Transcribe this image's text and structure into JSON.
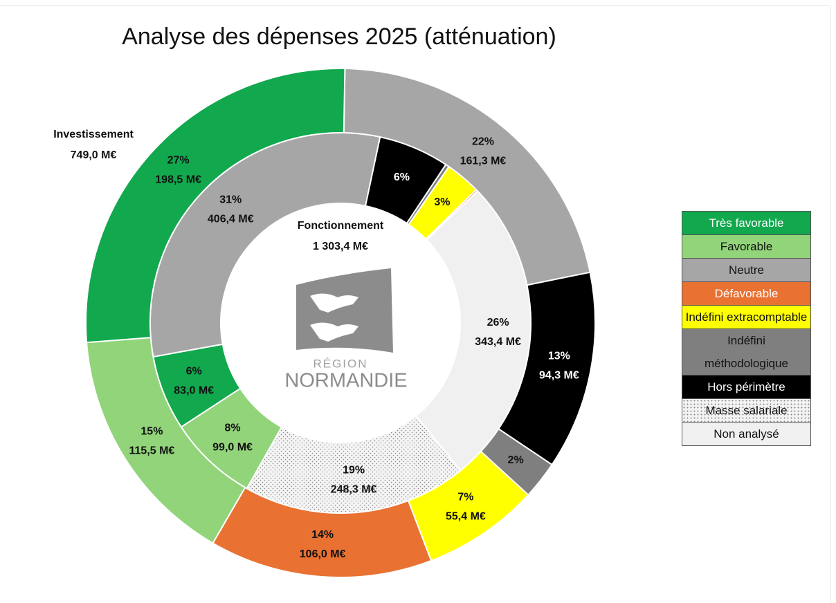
{
  "chart_data": {
    "type": "donut",
    "title": "Analyse des dépenses 2025 (atténuation)",
    "series": [
      {
        "name": "Très favorable",
        "color": "#12a84e"
      },
      {
        "name": "Favorable",
        "color": "#92d47a"
      },
      {
        "name": "Neutre",
        "color": "#a6a6a6"
      },
      {
        "name": "Défavorable",
        "color": "#e97132"
      },
      {
        "name": "Indéfini extracomptable",
        "color": "#ffff00"
      },
      {
        "name": "Indéfini méthodologique",
        "color": "#7f7f7f"
      },
      {
        "name": "Hors périmètre",
        "color": "#000000"
      },
      {
        "name": "Masse salariale",
        "color": "#f2f2f2",
        "pattern": "dots"
      },
      {
        "name": "Non analysé",
        "color": "#f0f0f0"
      }
    ],
    "rings": [
      {
        "name": "Fonctionnement",
        "total": 1303.4,
        "total_label": "1 303,4 M€",
        "segments": [
          {
            "color": "#000000",
            "value": 78.3,
            "value_label": null,
            "percent_label": "6%"
          },
          {
            "color": "#7f7f7f",
            "value": 4,
            "value_label": null,
            "percent_label": null
          },
          {
            "color": "#ffff00",
            "value": 39,
            "value_label": null,
            "percent_label": "3%"
          },
          {
            "color": "#e97132",
            "value": 2,
            "value_label": null,
            "percent_label": null
          },
          {
            "color": "#f0f0f0",
            "value": 343.4,
            "value_label": "343,4 M€",
            "percent_label": "26%"
          },
          {
            "color": "#f2f2f2",
            "pattern": "dots",
            "value": 248.3,
            "value_label": "248,3 M€",
            "percent_label": "19%"
          },
          {
            "color": "#92d47a",
            "value": 99.0,
            "value_label": "99,0 M€",
            "percent_label": "8%"
          },
          {
            "color": "#12a84e",
            "value": 83.0,
            "value_label": "83,0 M€",
            "percent_label": "6%"
          },
          {
            "color": "#a6a6a6",
            "value": 406.4,
            "value_label": "406,4 M€",
            "percent_label": "31%"
          }
        ]
      },
      {
        "name": "Investissement",
        "total": 749.0,
        "total_label": "749,0 M€",
        "segments": [
          {
            "color": "#a6a6a6",
            "value": 161.3,
            "value_label": "161,3 M€",
            "percent_label": "22%"
          },
          {
            "color": "#000000",
            "value": 94.3,
            "value_label": "94,3 M€",
            "percent_label": "13%"
          },
          {
            "color": "#7f7f7f",
            "value": 18,
            "value_label": null,
            "percent_label": "2%"
          },
          {
            "color": "#ffff00",
            "value": 55.4,
            "value_label": "55,4 M€",
            "percent_label": "7%"
          },
          {
            "color": "#e97132",
            "value": 106.0,
            "value_label": "106,0 M€",
            "percent_label": "14%"
          },
          {
            "color": "#92d47a",
            "value": 115.5,
            "value_label": "115,5 M€",
            "percent_label": "15%"
          },
          {
            "color": "#12a84e",
            "value": 198.5,
            "value_label": "198,5 M€",
            "percent_label": "27%"
          }
        ]
      }
    ],
    "logo": {
      "line1": "RÉGION",
      "line2": "NORMANDIE"
    }
  }
}
